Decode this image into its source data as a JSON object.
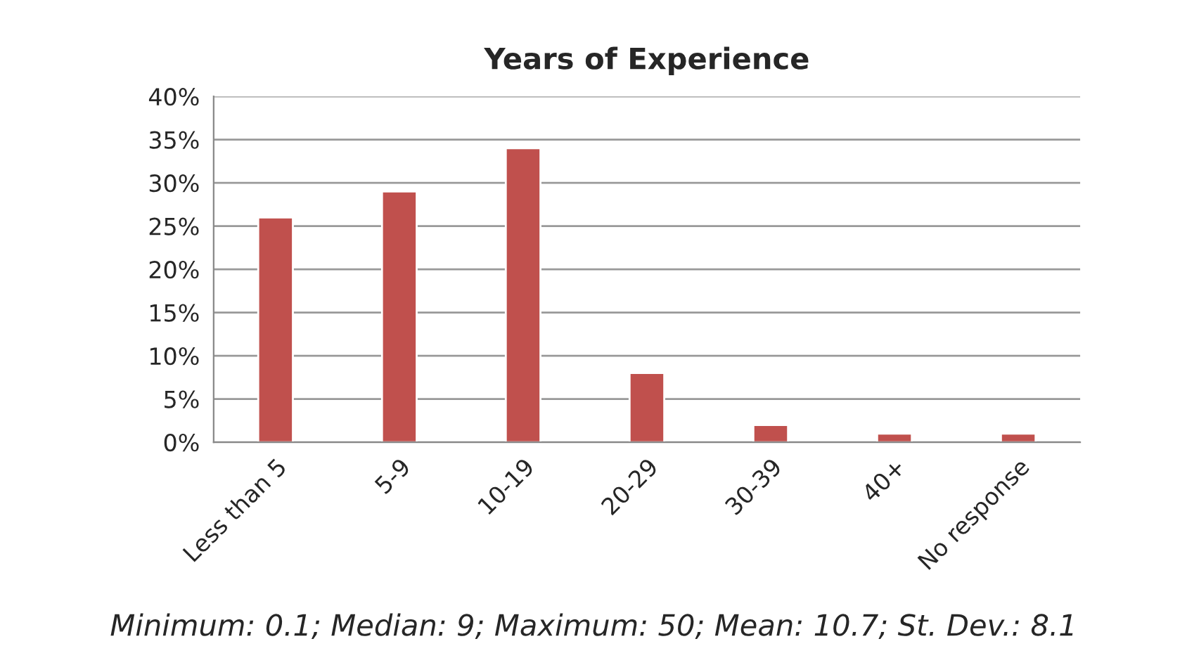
{
  "chart_data": {
    "type": "bar",
    "title": "Years of Experience",
    "categories": [
      "Less than 5",
      "5-9",
      "10-19",
      "20-29",
      "30-39",
      "40+",
      "No response"
    ],
    "values": [
      26,
      29,
      34,
      8,
      2,
      1,
      1
    ],
    "color": "#c0504d",
    "ylim": [
      0,
      40
    ],
    "yticks": [
      {
        "value": 0,
        "label": "0%"
      },
      {
        "value": 5,
        "label": "5%"
      },
      {
        "value": 10,
        "label": "10%"
      },
      {
        "value": 15,
        "label": "15%"
      },
      {
        "value": 20,
        "label": "20%"
      },
      {
        "value": 25,
        "label": "25%"
      },
      {
        "value": 30,
        "label": "30%"
      },
      {
        "value": 35,
        "label": "35%"
      },
      {
        "value": 40,
        "label": "40%"
      }
    ],
    "grid": "y",
    "annotations": [
      "Minimum: 0.1; Median: 9; Maximum: 50; Mean: 10.7; St. Dev.: 8.1"
    ]
  }
}
